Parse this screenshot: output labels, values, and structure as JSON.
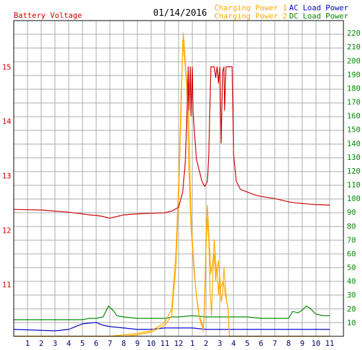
{
  "header": {
    "battery_label": "Battery Voltage",
    "date": "01/14/2016",
    "charging1_label": "Charging Power 1",
    "charging2_label": "Charging Power 2",
    "ac_label": "AC Load Power",
    "dc_label": "DC Load Power"
  },
  "colors": {
    "battery": "#cc0000",
    "charging1": "#ffaa00",
    "charging2": "#ffaa00",
    "ac": "#0000cc",
    "dc": "#008800",
    "grid": "#aaaaaa",
    "x_ticks": "#000066",
    "right_ticks": "#008800"
  },
  "chart_data": {
    "type": "line",
    "x_tick_labels": [
      "1",
      "2",
      "3",
      "4",
      "5",
      "6",
      "7",
      "8",
      "9",
      "10",
      "11",
      "12",
      "1",
      "2",
      "3",
      "4",
      "5",
      "6",
      "7",
      "8",
      "9",
      "10",
      "11"
    ],
    "left_axis": {
      "label": "Battery Voltage",
      "ticks": [
        11,
        12,
        13,
        14,
        15
      ],
      "range": [
        10.05,
        15.85
      ]
    },
    "right_axis": {
      "ticks": [
        10,
        20,
        30,
        40,
        50,
        60,
        70,
        80,
        90,
        100,
        110,
        120,
        130,
        140,
        150,
        160,
        170,
        180,
        190,
        200,
        210,
        220
      ],
      "range": [
        0,
        229
      ]
    },
    "grid": true,
    "series": [
      {
        "name": "Battery Voltage",
        "axis": "left",
        "color_key": "battery",
        "points": [
          [
            0,
            12.38
          ],
          [
            2,
            12.37
          ],
          [
            3,
            12.35
          ],
          [
            4,
            12.33
          ],
          [
            5,
            12.3
          ],
          [
            5.5,
            12.28
          ],
          [
            6,
            12.27
          ],
          [
            6.5,
            12.25
          ],
          [
            7,
            12.22
          ],
          [
            7.5,
            12.25
          ],
          [
            8,
            12.28
          ],
          [
            9,
            12.3
          ],
          [
            10,
            12.31
          ],
          [
            11,
            12.32
          ],
          [
            11.5,
            12.35
          ],
          [
            12,
            12.42
          ],
          [
            12.3,
            12.7
          ],
          [
            12.5,
            13.3
          ],
          [
            12.6,
            14.1
          ],
          [
            12.7,
            15.0
          ],
          [
            12.75,
            14.2
          ],
          [
            12.85,
            15.0
          ],
          [
            12.9,
            14.1
          ],
          [
            13.0,
            15.0
          ],
          [
            13.05,
            14.2
          ],
          [
            13.15,
            13.8
          ],
          [
            13.3,
            13.3
          ],
          [
            13.5,
            13.1
          ],
          [
            13.7,
            12.9
          ],
          [
            13.9,
            12.8
          ],
          [
            14.1,
            12.9
          ],
          [
            14.2,
            13.4
          ],
          [
            14.3,
            14.5
          ],
          [
            14.35,
            15.0
          ],
          [
            14.6,
            15.0
          ],
          [
            14.7,
            14.8
          ],
          [
            14.8,
            15.0
          ],
          [
            14.9,
            14.7
          ],
          [
            15.0,
            15.0
          ],
          [
            15.1,
            13.6
          ],
          [
            15.2,
            14.9
          ],
          [
            15.3,
            15.0
          ],
          [
            15.35,
            14.2
          ],
          [
            15.45,
            15.0
          ],
          [
            15.9,
            15.0
          ],
          [
            16.0,
            13.4
          ],
          [
            16.2,
            12.9
          ],
          [
            16.5,
            12.75
          ],
          [
            17,
            12.7
          ],
          [
            17.5,
            12.65
          ],
          [
            18,
            12.62
          ],
          [
            18.5,
            12.6
          ],
          [
            19,
            12.58
          ],
          [
            19.5,
            12.55
          ],
          [
            20,
            12.52
          ],
          [
            20.5,
            12.5
          ],
          [
            21,
            12.49
          ],
          [
            21.5,
            12.48
          ],
          [
            22,
            12.47
          ],
          [
            23,
            12.46
          ]
        ]
      },
      {
        "name": "Charging Power 1",
        "axis": "right",
        "color_key": "charging1",
        "points": [
          [
            0,
            0
          ],
          [
            7,
            0
          ],
          [
            8,
            1
          ],
          [
            9,
            2
          ],
          [
            10,
            4
          ],
          [
            11,
            10
          ],
          [
            11.5,
            20
          ],
          [
            11.8,
            60
          ],
          [
            12,
            110
          ],
          [
            12.2,
            180
          ],
          [
            12.35,
            220
          ],
          [
            12.45,
            205
          ],
          [
            12.55,
            190
          ],
          [
            12.7,
            175
          ],
          [
            12.8,
            130
          ],
          [
            12.9,
            90
          ],
          [
            13.0,
            70
          ],
          [
            13.2,
            40
          ],
          [
            13.4,
            20
          ],
          [
            13.6,
            10
          ],
          [
            13.8,
            5
          ],
          [
            13.9,
            25
          ],
          [
            14.0,
            65
          ],
          [
            14.1,
            85
          ],
          [
            14.2,
            70
          ],
          [
            14.3,
            30
          ],
          [
            14.4,
            15
          ],
          [
            14.5,
            48
          ],
          [
            14.6,
            60
          ],
          [
            14.7,
            40
          ],
          [
            14.8,
            50
          ],
          [
            14.9,
            30
          ],
          [
            15.0,
            45
          ],
          [
            15.1,
            25
          ],
          [
            15.2,
            30
          ],
          [
            15.3,
            50
          ],
          [
            15.5,
            25
          ],
          [
            15.6,
            20
          ],
          [
            15.7,
            0
          ],
          [
            23,
            0
          ]
        ]
      },
      {
        "name": "Charging Power 2",
        "axis": "right",
        "color_key": "charging2",
        "points": [
          [
            0,
            0
          ],
          [
            8,
            0
          ],
          [
            9,
            1
          ],
          [
            10,
            3
          ],
          [
            11,
            8
          ],
          [
            11.5,
            15
          ],
          [
            11.8,
            50
          ],
          [
            12,
            100
          ],
          [
            12.2,
            170
          ],
          [
            12.3,
            215
          ],
          [
            12.45,
            200
          ],
          [
            12.6,
            180
          ],
          [
            12.75,
            120
          ],
          [
            12.9,
            80
          ],
          [
            13.1,
            50
          ],
          [
            13.3,
            30
          ],
          [
            13.5,
            15
          ],
          [
            13.7,
            10
          ],
          [
            13.8,
            3
          ],
          [
            13.9,
            30
          ],
          [
            14.0,
            75
          ],
          [
            14.1,
            95
          ],
          [
            14.2,
            75
          ],
          [
            14.35,
            45
          ],
          [
            14.5,
            55
          ],
          [
            14.6,
            70
          ],
          [
            14.75,
            45
          ],
          [
            14.9,
            55
          ],
          [
            15.05,
            35
          ],
          [
            15.25,
            40
          ],
          [
            15.4,
            30
          ],
          [
            15.6,
            20
          ],
          [
            15.7,
            0
          ],
          [
            23,
            0
          ]
        ]
      },
      {
        "name": "AC Load Power",
        "axis": "right",
        "color_key": "ac",
        "points": [
          [
            0,
            5
          ],
          [
            3,
            4
          ],
          [
            4,
            5
          ],
          [
            4.5,
            7
          ],
          [
            5,
            9
          ],
          [
            6,
            10
          ],
          [
            6.5,
            8
          ],
          [
            7,
            7
          ],
          [
            8,
            6
          ],
          [
            9,
            5
          ],
          [
            10,
            5
          ],
          [
            11,
            6
          ],
          [
            12,
            6
          ],
          [
            13,
            6
          ],
          [
            14,
            5
          ],
          [
            15,
            5
          ],
          [
            16,
            5
          ],
          [
            17,
            5
          ],
          [
            18,
            5
          ],
          [
            19,
            5
          ],
          [
            20,
            5
          ],
          [
            21,
            5
          ],
          [
            22,
            5
          ],
          [
            23,
            5
          ]
        ]
      },
      {
        "name": "DC Load Power",
        "axis": "right",
        "color_key": "dc",
        "points": [
          [
            0,
            12
          ],
          [
            3,
            12
          ],
          [
            5,
            12
          ],
          [
            5.5,
            13
          ],
          [
            6,
            13
          ],
          [
            6.5,
            14
          ],
          [
            6.9,
            22
          ],
          [
            7.1,
            20
          ],
          [
            7.3,
            18
          ],
          [
            7.5,
            15
          ],
          [
            8,
            14
          ],
          [
            9,
            13
          ],
          [
            10,
            13
          ],
          [
            11,
            13
          ],
          [
            11.5,
            14
          ],
          [
            12,
            14
          ],
          [
            13,
            15
          ],
          [
            14,
            14
          ],
          [
            15,
            14
          ],
          [
            16,
            14
          ],
          [
            17,
            14
          ],
          [
            18,
            13
          ],
          [
            19,
            13
          ],
          [
            20,
            13
          ],
          [
            20.3,
            18
          ],
          [
            20.7,
            17
          ],
          [
            21,
            19
          ],
          [
            21.3,
            22
          ],
          [
            21.6,
            20
          ],
          [
            22,
            16
          ],
          [
            22.5,
            15
          ],
          [
            23,
            15
          ]
        ]
      }
    ]
  }
}
